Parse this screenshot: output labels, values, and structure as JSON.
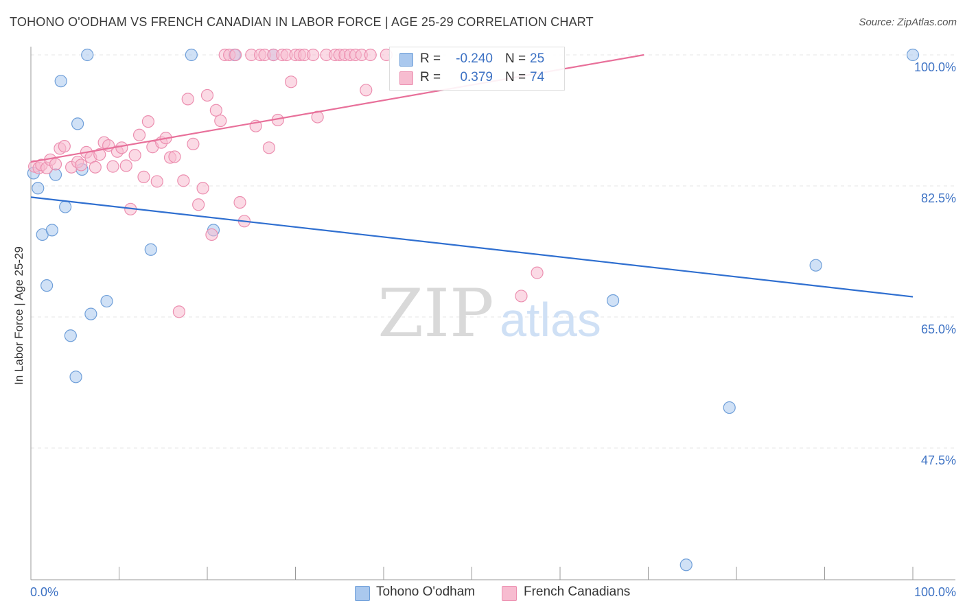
{
  "header": {
    "title": "TOHONO O'ODHAM VS FRENCH CANADIAN IN LABOR FORCE | AGE 25-29 CORRELATION CHART",
    "source": "Source: ZipAtlas.com"
  },
  "watermark": {
    "zip": "ZIP",
    "atlas": "atlas"
  },
  "legend": {
    "r_label": "R =",
    "n_label": "N =",
    "items": [
      {
        "r": "-0.240",
        "n": "25"
      },
      {
        "r": "0.379",
        "n": "74"
      }
    ]
  },
  "colors": {
    "blue_fill": "#aac8ee",
    "blue_stroke": "#6f9fd9",
    "blue_line": "#2f6fd0",
    "pink_fill": "#f7bcd0",
    "pink_stroke": "#ec8fb0",
    "pink_line": "#e8709a",
    "tick_text": "#3d72c4"
  },
  "chart_data": {
    "type": "scatter",
    "title": "TOHONO O'ODHAM VS FRENCH CANADIAN IN LABOR FORCE | AGE 25-29 CORRELATION CHART",
    "xlabel": "",
    "ylabel": "In Labor Force | Age 25-29",
    "xlim": [
      0,
      100
    ],
    "ylim": [
      30,
      101.5
    ],
    "x_tick_labels": [
      "0.0%",
      "100.0%"
    ],
    "y_ticks": [
      47.5,
      65.0,
      82.5,
      100.0
    ],
    "y_tick_labels": [
      "47.5%",
      "65.0%",
      "82.5%",
      "100.0%"
    ],
    "grid": true,
    "legend_position": "top-center",
    "series": [
      {
        "name": "Tohono O'odham",
        "r": -0.24,
        "n": 25,
        "trend": {
          "x": [
            0,
            100
          ],
          "y": [
            81.0,
            67.7
          ]
        },
        "points": [
          [
            0.3,
            84.2
          ],
          [
            0.8,
            82.2
          ],
          [
            1.3,
            76.0
          ],
          [
            1.8,
            69.2
          ],
          [
            2.4,
            76.6
          ],
          [
            2.8,
            84.0
          ],
          [
            3.4,
            96.5
          ],
          [
            3.9,
            79.7
          ],
          [
            4.5,
            62.5
          ],
          [
            5.1,
            57.0
          ],
          [
            5.3,
            90.8
          ],
          [
            5.8,
            84.7
          ],
          [
            6.4,
            100.0
          ],
          [
            8.6,
            67.1
          ],
          [
            6.8,
            65.4
          ],
          [
            13.6,
            74.0
          ],
          [
            18.2,
            100.0
          ],
          [
            20.7,
            76.6
          ],
          [
            23.1,
            100.0
          ],
          [
            27.5,
            100.0
          ],
          [
            66.0,
            67.2
          ],
          [
            79.2,
            52.9
          ],
          [
            89.0,
            71.9
          ],
          [
            74.3,
            31.9
          ],
          [
            100.0,
            100.0
          ]
        ]
      },
      {
        "name": "French Canadians",
        "r": 0.379,
        "n": 74,
        "trend": {
          "x": [
            0,
            69.5
          ],
          "y": [
            85.7,
            100.0
          ]
        },
        "points": [
          [
            0.4,
            85.1
          ],
          [
            0.9,
            84.9
          ],
          [
            1.2,
            85.3
          ],
          [
            1.8,
            84.9
          ],
          [
            2.2,
            86.0
          ],
          [
            2.8,
            85.4
          ],
          [
            3.3,
            87.5
          ],
          [
            3.8,
            87.8
          ],
          [
            4.6,
            85.0
          ],
          [
            5.3,
            85.7
          ],
          [
            5.7,
            85.3
          ],
          [
            6.3,
            87.0
          ],
          [
            6.8,
            86.3
          ],
          [
            7.3,
            85.0
          ],
          [
            7.8,
            86.7
          ],
          [
            8.3,
            88.3
          ],
          [
            8.8,
            87.9
          ],
          [
            9.3,
            85.1
          ],
          [
            9.8,
            87.1
          ],
          [
            10.3,
            87.6
          ],
          [
            10.8,
            85.2
          ],
          [
            11.3,
            79.4
          ],
          [
            11.8,
            86.6
          ],
          [
            12.3,
            89.3
          ],
          [
            12.8,
            83.7
          ],
          [
            13.3,
            91.1
          ],
          [
            13.8,
            87.7
          ],
          [
            14.3,
            83.1
          ],
          [
            14.8,
            88.3
          ],
          [
            15.3,
            88.9
          ],
          [
            15.8,
            86.3
          ],
          [
            16.3,
            86.4
          ],
          [
            16.8,
            65.7
          ],
          [
            17.3,
            83.2
          ],
          [
            17.8,
            94.1
          ],
          [
            18.4,
            88.1
          ],
          [
            19.0,
            80.0
          ],
          [
            19.5,
            82.2
          ],
          [
            20.0,
            94.6
          ],
          [
            20.5,
            76.0
          ],
          [
            21.0,
            92.6
          ],
          [
            21.5,
            91.2
          ],
          [
            22.0,
            100.0
          ],
          [
            22.5,
            100.0
          ],
          [
            23.2,
            100.0
          ],
          [
            23.7,
            80.3
          ],
          [
            24.2,
            77.8
          ],
          [
            25.0,
            100.0
          ],
          [
            25.5,
            90.5
          ],
          [
            26.0,
            100.0
          ],
          [
            26.5,
            100.0
          ],
          [
            27.0,
            87.6
          ],
          [
            27.5,
            100.0
          ],
          [
            28.0,
            91.3
          ],
          [
            28.5,
            100.0
          ],
          [
            29.0,
            100.0
          ],
          [
            29.5,
            96.4
          ],
          [
            30.0,
            100.0
          ],
          [
            30.5,
            100.0
          ],
          [
            31.0,
            100.0
          ],
          [
            32.0,
            100.0
          ],
          [
            32.5,
            91.7
          ],
          [
            33.5,
            100.0
          ],
          [
            34.5,
            100.0
          ],
          [
            35.0,
            100.0
          ],
          [
            35.6,
            100.0
          ],
          [
            36.2,
            100.0
          ],
          [
            36.8,
            100.0
          ],
          [
            37.5,
            100.0
          ],
          [
            38.0,
            95.3
          ],
          [
            38.5,
            100.0
          ],
          [
            40.3,
            100.0
          ],
          [
            55.6,
            67.8
          ],
          [
            57.4,
            70.9
          ]
        ]
      }
    ]
  },
  "bottom_legend": [
    "Tohono O'odham",
    "French Canadians"
  ]
}
